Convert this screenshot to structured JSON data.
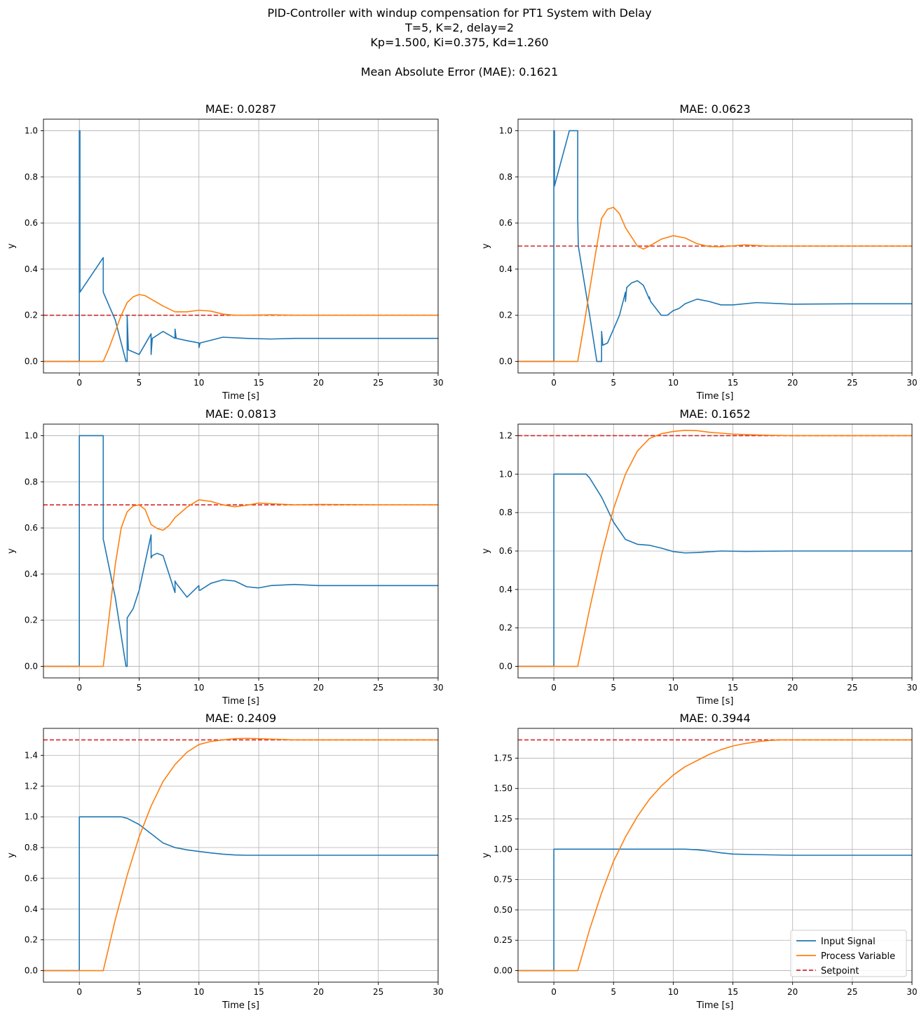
{
  "figure": {
    "title_lines": [
      "PID-Controller with windup compensation for PT1 System with Delay",
      "T=5, K=2, delay=2",
      "Kp=1.500, Ki=0.375, Kd=1.260",
      "",
      "Mean Absolute Error (MAE): 0.1621"
    ]
  },
  "colors": {
    "input": "#1f77b4",
    "process": "#ff7f0e",
    "setpoint": "#d62728",
    "grid": "#b0b0b0"
  },
  "legend": {
    "location": "lower-right",
    "entries": [
      "Input Signal",
      "Process Variable",
      "Setpoint"
    ]
  },
  "chart_data": [
    {
      "type": "line",
      "title": "MAE: 0.0287",
      "xlabel": "Time [s]",
      "ylabel": "y",
      "xlim": [
        -3,
        30
      ],
      "ylim": [
        -0.05,
        1.05
      ],
      "grid": true,
      "xticks": [
        0,
        5,
        10,
        15,
        20,
        25,
        30
      ],
      "yticks": [
        0.0,
        0.2,
        0.4,
        0.6,
        0.8,
        1.0
      ],
      "ytick_decimals": 1,
      "setpoint": 0.2,
      "series": [
        {
          "name": "Input Signal",
          "role": "input",
          "x": [
            -3,
            0,
            0,
            0.05,
            0.05,
            2,
            2,
            3,
            3.9,
            4,
            4,
            4.1,
            5,
            6,
            6,
            6.1,
            7,
            8,
            8,
            8.1,
            9,
            10,
            10,
            10.1,
            12,
            14,
            16,
            18,
            20,
            25,
            30
          ],
          "y": [
            0,
            0,
            1.0,
            1.0,
            0.3,
            0.45,
            0.3,
            0.18,
            0.0,
            0.0,
            0.2,
            0.05,
            0.03,
            0.12,
            0.03,
            0.1,
            0.13,
            0.1,
            0.14,
            0.1,
            0.09,
            0.08,
            0.06,
            0.08,
            0.105,
            0.1,
            0.097,
            0.1,
            0.1,
            0.1,
            0.1
          ]
        },
        {
          "name": "Process Variable",
          "role": "process",
          "x": [
            -3,
            2,
            2.5,
            3,
            3.5,
            4,
            4.5,
            5,
            5.5,
            6,
            7,
            8,
            9,
            10,
            11,
            12,
            13,
            14,
            16,
            18,
            20,
            25,
            30
          ],
          "y": [
            0,
            0,
            0.06,
            0.13,
            0.2,
            0.255,
            0.28,
            0.29,
            0.285,
            0.27,
            0.24,
            0.215,
            0.215,
            0.222,
            0.218,
            0.205,
            0.2,
            0.2,
            0.202,
            0.2,
            0.2,
            0.2,
            0.2
          ]
        }
      ]
    },
    {
      "type": "line",
      "title": "MAE: 0.0623",
      "xlabel": "Time [s]",
      "ylabel": "y",
      "xlim": [
        -3,
        30
      ],
      "ylim": [
        -0.05,
        1.05
      ],
      "grid": true,
      "xticks": [
        0,
        5,
        10,
        15,
        20,
        25,
        30
      ],
      "yticks": [
        0.0,
        0.2,
        0.4,
        0.6,
        0.8,
        1.0
      ],
      "ytick_decimals": 1,
      "setpoint": 0.5,
      "series": [
        {
          "name": "Input Signal",
          "role": "input",
          "x": [
            -3,
            0,
            0,
            0.05,
            0.05,
            1.3,
            2,
            2,
            2.05,
            3,
            3.6,
            4,
            4,
            4.1,
            4.5,
            5,
            5.5,
            6,
            6,
            6.1,
            6.5,
            7,
            7.5,
            8,
            8,
            8.1,
            9,
            9.5,
            10,
            10.5,
            11,
            12,
            13,
            14,
            15,
            17,
            20,
            25,
            30
          ],
          "y": [
            0,
            0,
            1.0,
            1.0,
            0.76,
            1.0,
            1.0,
            0.62,
            0.5,
            0.2,
            0.0,
            0.0,
            0.13,
            0.07,
            0.08,
            0.14,
            0.2,
            0.3,
            0.26,
            0.32,
            0.34,
            0.35,
            0.33,
            0.27,
            0.28,
            0.26,
            0.2,
            0.2,
            0.22,
            0.23,
            0.25,
            0.27,
            0.26,
            0.245,
            0.245,
            0.255,
            0.248,
            0.25,
            0.25
          ]
        },
        {
          "name": "Process Variable",
          "role": "process",
          "x": [
            -3,
            2,
            2.5,
            3,
            3.5,
            4,
            4.5,
            5,
            5.5,
            6,
            7,
            7.5,
            8,
            9,
            10,
            11,
            12,
            13,
            14,
            16,
            18,
            20,
            25,
            30
          ],
          "y": [
            0,
            0,
            0.15,
            0.31,
            0.47,
            0.62,
            0.66,
            0.668,
            0.64,
            0.58,
            0.5,
            0.487,
            0.5,
            0.53,
            0.545,
            0.535,
            0.51,
            0.498,
            0.497,
            0.505,
            0.5,
            0.5,
            0.5,
            0.5
          ]
        }
      ]
    },
    {
      "type": "line",
      "title": "MAE: 0.0813",
      "xlabel": "Time [s]",
      "ylabel": "y",
      "xlim": [
        -3,
        30
      ],
      "ylim": [
        -0.05,
        1.05
      ],
      "grid": true,
      "xticks": [
        0,
        5,
        10,
        15,
        20,
        25,
        30
      ],
      "yticks": [
        0.0,
        0.2,
        0.4,
        0.6,
        0.8,
        1.0
      ],
      "ytick_decimals": 1,
      "setpoint": 0.7,
      "series": [
        {
          "name": "Input Signal",
          "role": "input",
          "x": [
            -3,
            0,
            0,
            2,
            2,
            2.05,
            3,
            3.9,
            4,
            4,
            4.5,
            5,
            5.5,
            6,
            6,
            6.1,
            6.5,
            7,
            7.5,
            8,
            8,
            8.1,
            9,
            10,
            10,
            10.1,
            11,
            12,
            13,
            14,
            15,
            16,
            18,
            20,
            25,
            30
          ],
          "y": [
            0,
            0,
            1.0,
            1.0,
            0.55,
            0.54,
            0.3,
            0.0,
            0.0,
            0.21,
            0.25,
            0.33,
            0.45,
            0.57,
            0.47,
            0.48,
            0.49,
            0.48,
            0.4,
            0.32,
            0.37,
            0.36,
            0.3,
            0.35,
            0.33,
            0.33,
            0.36,
            0.375,
            0.37,
            0.345,
            0.34,
            0.35,
            0.355,
            0.35,
            0.35,
            0.35
          ]
        },
        {
          "name": "Process Variable",
          "role": "process",
          "x": [
            -3,
            2,
            2.5,
            3,
            3.5,
            4,
            4.5,
            5,
            5.5,
            6,
            6.5,
            7,
            7.5,
            8,
            9,
            10,
            11,
            12,
            13,
            14,
            15,
            16,
            18,
            20,
            25,
            30
          ],
          "y": [
            0,
            0,
            0.22,
            0.44,
            0.6,
            0.67,
            0.695,
            0.7,
            0.68,
            0.615,
            0.598,
            0.59,
            0.61,
            0.645,
            0.69,
            0.722,
            0.715,
            0.7,
            0.692,
            0.698,
            0.708,
            0.705,
            0.7,
            0.702,
            0.7,
            0.7
          ]
        }
      ]
    },
    {
      "type": "line",
      "title": "MAE: 0.1652",
      "xlabel": "Time [s]",
      "ylabel": "y",
      "xlim": [
        -3,
        30
      ],
      "ylim": [
        -0.06,
        1.26
      ],
      "grid": true,
      "xticks": [
        0,
        5,
        10,
        15,
        20,
        25,
        30
      ],
      "yticks": [
        0.0,
        0.2,
        0.4,
        0.6,
        0.8,
        1.0,
        1.2
      ],
      "ytick_decimals": 1,
      "setpoint": 1.2,
      "series": [
        {
          "name": "Input Signal",
          "role": "input",
          "x": [
            -3,
            0,
            0,
            2.7,
            3,
            4,
            5,
            6,
            7,
            8,
            9,
            10,
            11,
            12,
            14,
            16,
            20,
            25,
            30
          ],
          "y": [
            0,
            0,
            1.0,
            1.0,
            0.98,
            0.88,
            0.75,
            0.66,
            0.635,
            0.63,
            0.615,
            0.597,
            0.59,
            0.592,
            0.6,
            0.598,
            0.6,
            0.6,
            0.6
          ]
        },
        {
          "name": "Process Variable",
          "role": "process",
          "x": [
            -3,
            2,
            3,
            4,
            5,
            6,
            7,
            8,
            9,
            10,
            11,
            12,
            13,
            15,
            18,
            20,
            25,
            30
          ],
          "y": [
            0,
            0,
            0.3,
            0.58,
            0.82,
            1.0,
            1.12,
            1.185,
            1.21,
            1.222,
            1.228,
            1.226,
            1.218,
            1.208,
            1.202,
            1.2,
            1.2,
            1.2
          ]
        }
      ]
    },
    {
      "type": "line",
      "title": "MAE: 0.2409",
      "xlabel": "Time [s]",
      "ylabel": "y",
      "xlim": [
        -3,
        30
      ],
      "ylim": [
        -0.075,
        1.575
      ],
      "grid": true,
      "xticks": [
        0,
        5,
        10,
        15,
        20,
        25,
        30
      ],
      "yticks": [
        0.0,
        0.2,
        0.4,
        0.6,
        0.8,
        1.0,
        1.2,
        1.4
      ],
      "ytick_decimals": 1,
      "setpoint": 1.5,
      "series": [
        {
          "name": "Input Signal",
          "role": "input",
          "x": [
            -3,
            0,
            0,
            3.5,
            4,
            5,
            6,
            7,
            8,
            9,
            10,
            11,
            12,
            13,
            14,
            16,
            20,
            25,
            30
          ],
          "y": [
            0,
            0,
            1.0,
            1.0,
            0.99,
            0.95,
            0.89,
            0.83,
            0.8,
            0.785,
            0.775,
            0.765,
            0.757,
            0.752,
            0.75,
            0.75,
            0.75,
            0.75,
            0.75
          ]
        },
        {
          "name": "Process Variable",
          "role": "process",
          "x": [
            -3,
            2,
            3,
            4,
            5,
            6,
            7,
            8,
            9,
            10,
            11,
            12,
            13,
            14,
            15,
            16,
            18,
            20,
            25,
            30
          ],
          "y": [
            0,
            0,
            0.33,
            0.62,
            0.87,
            1.07,
            1.23,
            1.34,
            1.42,
            1.47,
            1.49,
            1.5,
            1.508,
            1.51,
            1.508,
            1.505,
            1.5,
            1.5,
            1.5,
            1.5
          ]
        }
      ]
    },
    {
      "type": "line",
      "title": "MAE: 0.3944",
      "xlabel": "Time [s]",
      "ylabel": "y",
      "xlim": [
        -3,
        30
      ],
      "ylim": [
        -0.095,
        1.995
      ],
      "grid": true,
      "xticks": [
        0,
        5,
        10,
        15,
        20,
        25,
        30
      ],
      "yticks": [
        0.0,
        0.25,
        0.5,
        0.75,
        1.0,
        1.25,
        1.5,
        1.75
      ],
      "ytick_decimals": 2,
      "setpoint": 1.9,
      "series": [
        {
          "name": "Input Signal",
          "role": "input",
          "x": [
            -3,
            0,
            0,
            11,
            12,
            13,
            14,
            15,
            17,
            20,
            25,
            30
          ],
          "y": [
            0,
            0,
            1.0,
            1.0,
            0.995,
            0.985,
            0.97,
            0.96,
            0.955,
            0.95,
            0.95,
            0.95
          ]
        },
        {
          "name": "Process Variable",
          "role": "process",
          "x": [
            -3,
            2,
            3,
            4,
            5,
            6,
            7,
            8,
            9,
            10,
            11,
            12,
            13,
            14,
            15,
            16,
            17,
            18,
            19,
            20,
            22,
            25,
            30
          ],
          "y": [
            0,
            0,
            0.34,
            0.64,
            0.9,
            1.1,
            1.27,
            1.41,
            1.52,
            1.61,
            1.68,
            1.73,
            1.78,
            1.82,
            1.85,
            1.87,
            1.885,
            1.895,
            1.9,
            1.9,
            1.9,
            1.9,
            1.9
          ]
        }
      ]
    }
  ]
}
